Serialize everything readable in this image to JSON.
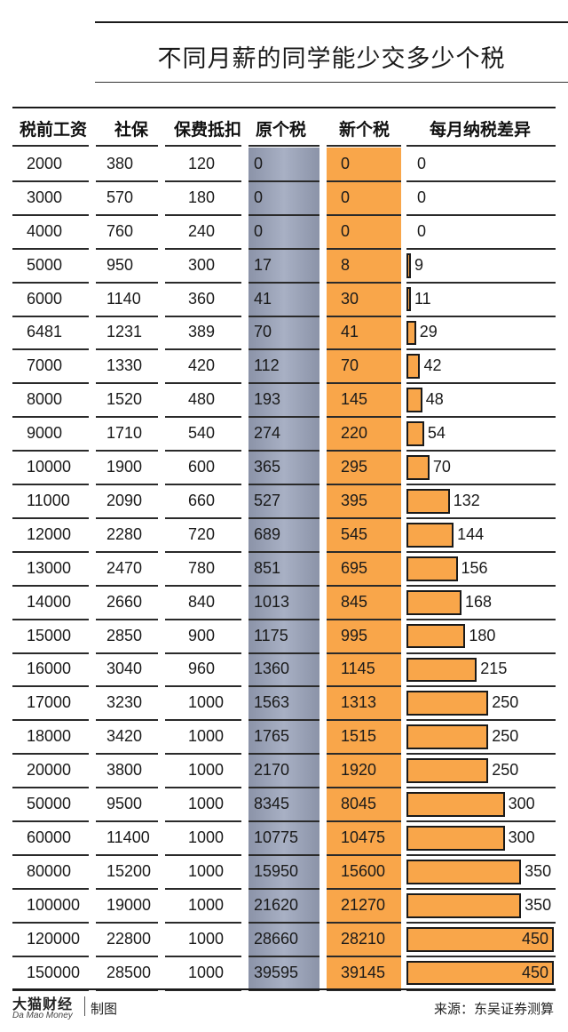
{
  "title": "不同月薪的同学能少交多少个税",
  "headers": [
    "税前工资",
    "社保",
    "保费抵扣",
    "原个税",
    "新个税",
    "每月纳税差异"
  ],
  "colors": {
    "original_tax_band": "#9aa3b8",
    "new_tax_band": "#f9a64a",
    "bar_fill": "#f9a64a",
    "bar_border": "#1a1a1a"
  },
  "chart_data": {
    "type": "table",
    "columns": [
      "税前工资",
      "社保",
      "保费抵扣",
      "原个税",
      "新个税",
      "每月纳税差异"
    ],
    "rows": [
      [
        2000,
        380,
        120,
        0,
        0,
        0
      ],
      [
        3000,
        570,
        180,
        0,
        0,
        0
      ],
      [
        4000,
        760,
        240,
        0,
        0,
        0
      ],
      [
        5000,
        950,
        300,
        17,
        8,
        9
      ],
      [
        6000,
        1140,
        360,
        41,
        30,
        11
      ],
      [
        6481,
        1231,
        389,
        70,
        41,
        29
      ],
      [
        7000,
        1330,
        420,
        112,
        70,
        42
      ],
      [
        8000,
        1520,
        480,
        193,
        145,
        48
      ],
      [
        9000,
        1710,
        540,
        274,
        220,
        54
      ],
      [
        10000,
        1900,
        600,
        365,
        295,
        70
      ],
      [
        11000,
        2090,
        660,
        527,
        395,
        132
      ],
      [
        12000,
        2280,
        720,
        689,
        545,
        144
      ],
      [
        13000,
        2470,
        780,
        851,
        695,
        156
      ],
      [
        14000,
        2660,
        840,
        1013,
        845,
        168
      ],
      [
        15000,
        2850,
        900,
        1175,
        995,
        180
      ],
      [
        16000,
        3040,
        960,
        1360,
        1145,
        215
      ],
      [
        17000,
        3230,
        1000,
        1563,
        1313,
        250
      ],
      [
        18000,
        3420,
        1000,
        1765,
        1515,
        250
      ],
      [
        20000,
        3800,
        1000,
        2170,
        1920,
        250
      ],
      [
        50000,
        9500,
        1000,
        8345,
        8045,
        300
      ],
      [
        60000,
        11400,
        1000,
        10775,
        10475,
        300
      ],
      [
        80000,
        15200,
        1000,
        15950,
        15600,
        350
      ],
      [
        100000,
        19000,
        1000,
        21620,
        21270,
        350
      ],
      [
        120000,
        22800,
        1000,
        28660,
        28210,
        450
      ],
      [
        150000,
        28500,
        1000,
        39595,
        39145,
        450
      ]
    ],
    "bar_column": "每月纳税差异",
    "bar_max": 450
  },
  "footer": {
    "logo_cn": "大猫财经",
    "logo_en": "Da Mao Money",
    "made_by": "制图",
    "source": "来源：东吴证券测算"
  }
}
